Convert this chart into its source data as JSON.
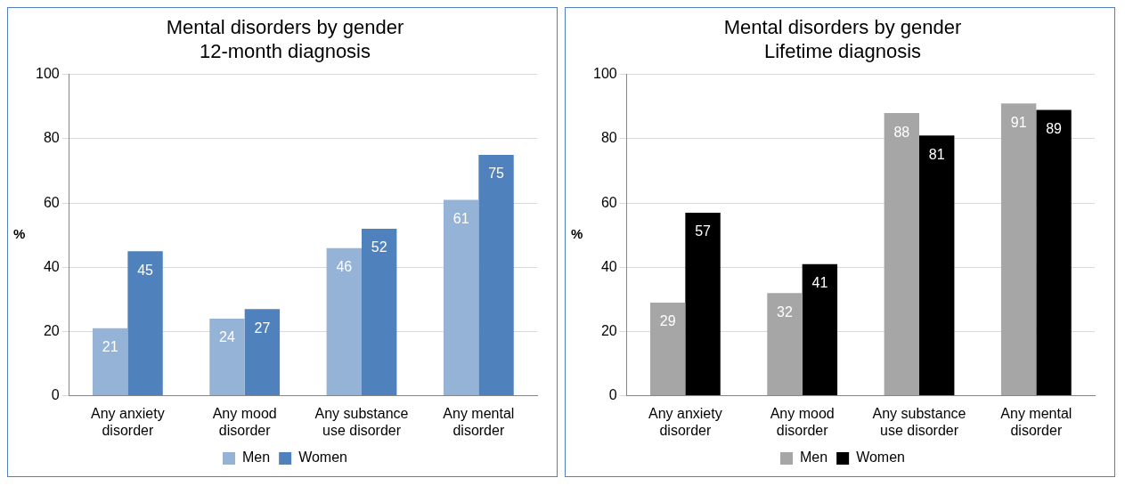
{
  "chart_data": [
    {
      "type": "bar",
      "title": "Mental disorders by gender\n12-month diagnosis",
      "ylabel": "%",
      "categories": [
        "Any anxiety disorder",
        "Any mood disorder",
        "Any substance use disorder",
        "Any mental disorder"
      ],
      "series": [
        {
          "name": "Men",
          "color": "#95b3d7",
          "values": [
            21,
            24,
            46,
            61
          ]
        },
        {
          "name": "Women",
          "color": "#4f81bd",
          "values": [
            45,
            27,
            52,
            75
          ]
        }
      ],
      "ylim": [
        0,
        100
      ],
      "yticks": [
        0,
        20,
        40,
        60,
        80,
        100
      ],
      "grid": "y",
      "legend": "bottom",
      "data_labels": true
    },
    {
      "type": "bar",
      "title": "Mental disorders by gender\nLifetime diagnosis",
      "ylabel": "%",
      "categories": [
        "Any anxiety disorder",
        "Any mood disorder",
        "Any substance use disorder",
        "Any mental disorder"
      ],
      "series": [
        {
          "name": "Men",
          "color": "#a6a6a6",
          "values": [
            29,
            32,
            88,
            91
          ]
        },
        {
          "name": "Women",
          "color": "#000000",
          "values": [
            57,
            41,
            81,
            89
          ]
        }
      ],
      "ylim": [
        0,
        100
      ],
      "yticks": [
        0,
        20,
        40,
        60,
        80,
        100
      ],
      "grid": "y",
      "legend": "bottom",
      "data_labels": true
    }
  ]
}
